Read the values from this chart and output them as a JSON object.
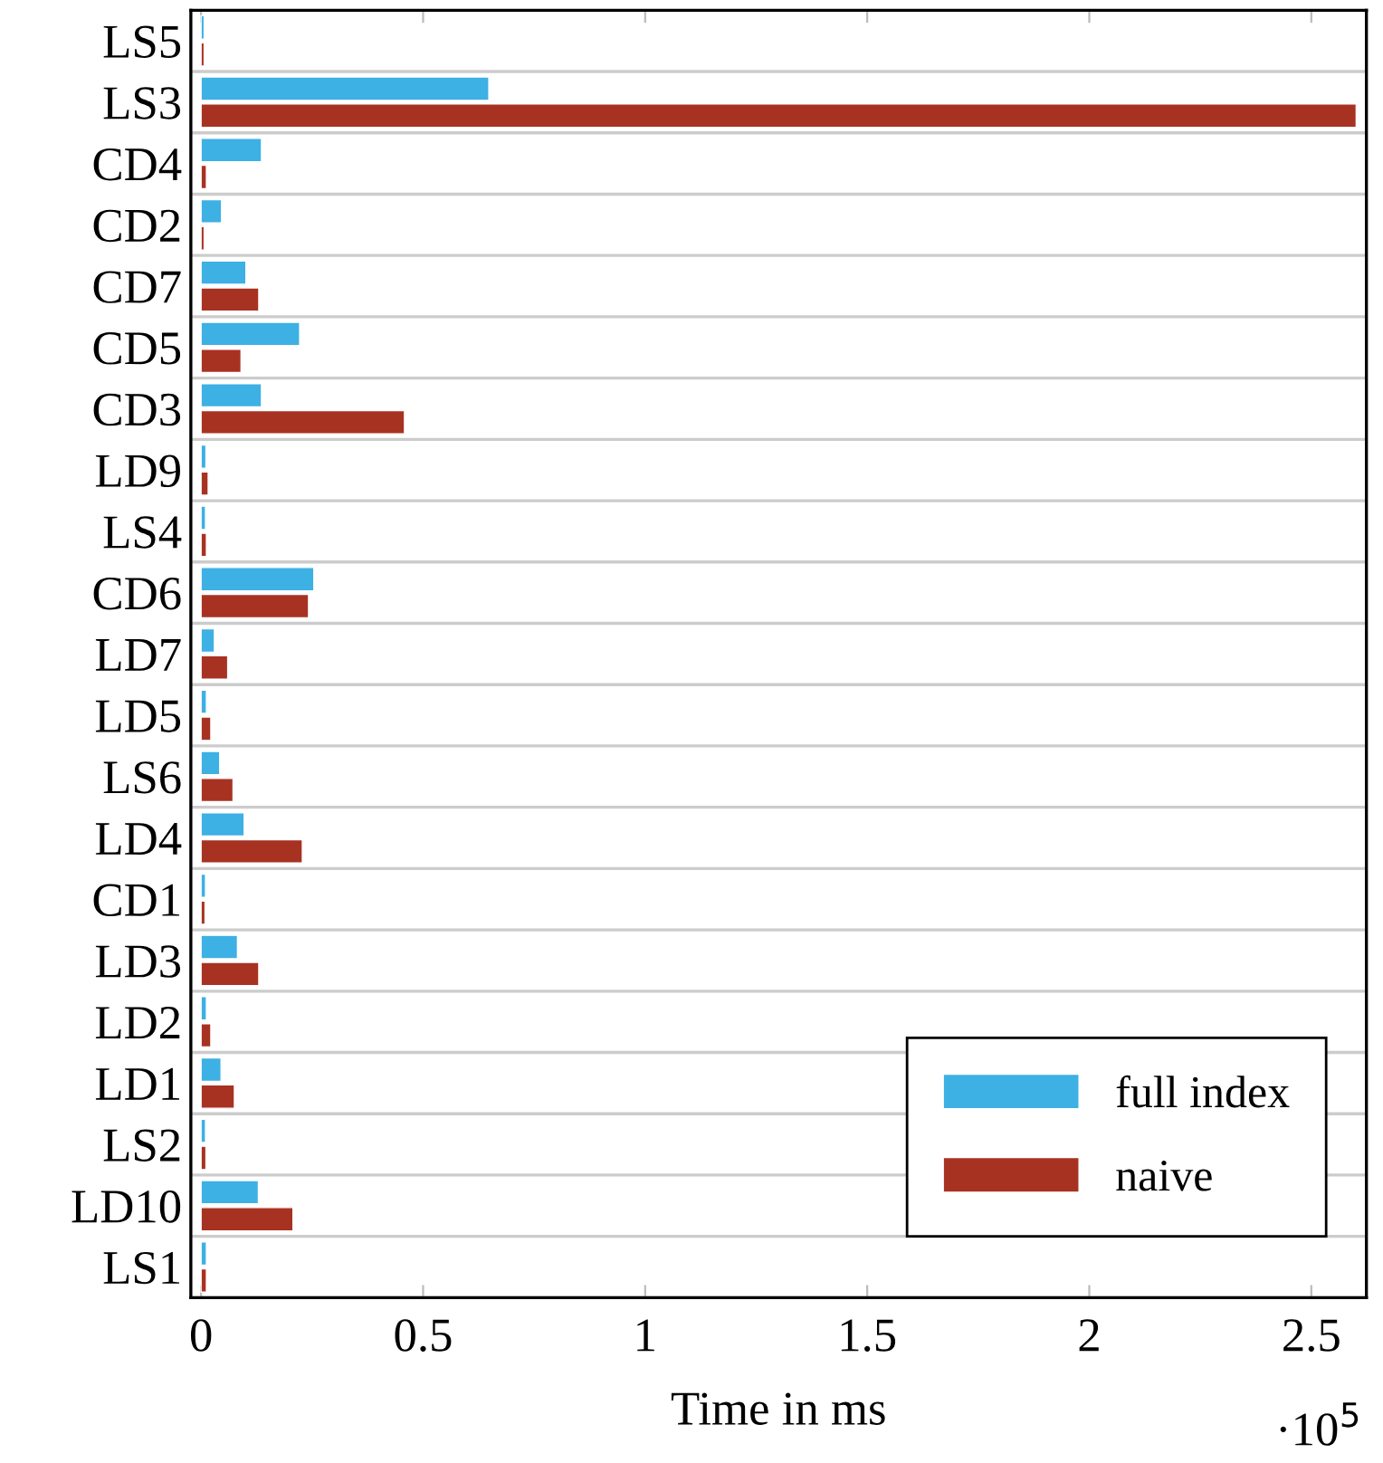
{
  "chart_data": {
    "type": "bar",
    "orientation": "horizontal",
    "xlabel": "Time in ms",
    "annotations": [
      "·10$^{5}$"
    ],
    "categories": [
      "LS5",
      "LS3",
      "CD4",
      "CD2",
      "CD7",
      "CD5",
      "CD3",
      "LD9",
      "LS4",
      "CD6",
      "LD7",
      "LD5",
      "LS6",
      "LD4",
      "CD1",
      "LD3",
      "LD2",
      "LD1",
      "LS2",
      "LD10",
      "LS1"
    ],
    "series": [
      {
        "name": "full index",
        "color": "#3db0e4",
        "values": [
          0.007,
          0.648,
          0.136,
          0.046,
          0.101,
          0.222,
          0.136,
          0.011,
          0.01,
          0.254,
          0.03,
          0.012,
          0.042,
          0.097,
          0.01,
          0.082,
          0.012,
          0.045,
          0.01,
          0.129,
          0.012
        ]
      },
      {
        "name": "naive",
        "color": "#a83222",
        "values": [
          0.007,
          2.601,
          0.012,
          0.007,
          0.13,
          0.09,
          0.458,
          0.016,
          0.012,
          0.242,
          0.06,
          0.022,
          0.072,
          0.228,
          0.009,
          0.13,
          0.022,
          0.075,
          0.011,
          0.207,
          0.012
        ]
      }
    ],
    "xlim": [
      -0.023,
      2.624
    ],
    "xticks": [
      0,
      0.5,
      1,
      1.5,
      2,
      2.5
    ],
    "grid": "y",
    "legend": "bottom right"
  }
}
